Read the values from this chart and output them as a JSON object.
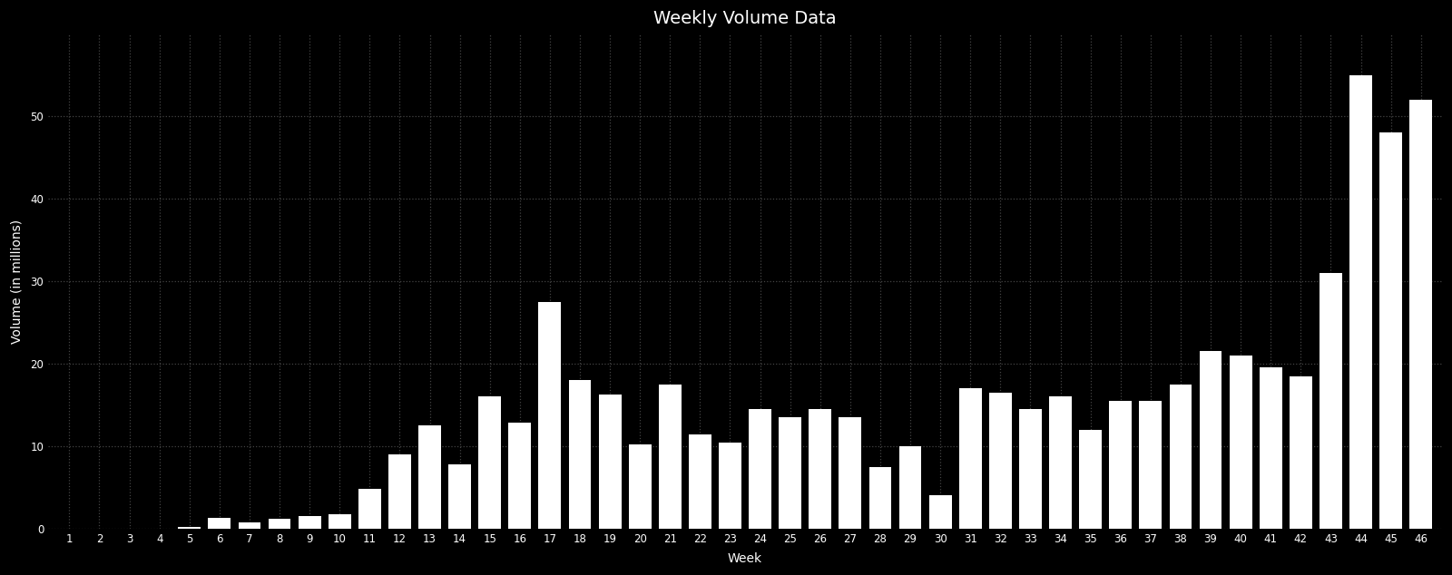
{
  "title": "Weekly Volume Data",
  "xlabel": "Week",
  "ylabel": "Volume (in millions)",
  "background_color": "#000000",
  "bar_color": "#ffffff",
  "grid_color": "#444444",
  "text_color": "#ffffff",
  "weeks": [
    1,
    2,
    3,
    4,
    5,
    6,
    7,
    8,
    9,
    10,
    11,
    12,
    13,
    14,
    15,
    16,
    17,
    18,
    19,
    20,
    21,
    22,
    23,
    24,
    25,
    26,
    27,
    28,
    29,
    30,
    31,
    32,
    33,
    34,
    35,
    36,
    37,
    38,
    39,
    40,
    41,
    42,
    43,
    44,
    45,
    46
  ],
  "values": [
    0.0,
    0.0,
    0.0,
    0.0,
    0.15,
    1.3,
    0.7,
    1.2,
    1.5,
    1.7,
    4.8,
    9.0,
    12.5,
    7.8,
    16.0,
    12.8,
    27.5,
    18.0,
    16.2,
    10.2,
    17.5,
    11.4,
    10.4,
    14.5,
    13.5,
    14.5,
    13.5,
    7.5,
    10.0,
    4.0,
    17.0,
    16.5,
    14.5,
    16.0,
    12.0,
    15.5,
    15.5,
    17.5,
    21.5,
    21.0,
    19.5,
    18.5,
    31.0,
    55.0,
    48.0,
    52.0
  ],
  "ylim": [
    0,
    60
  ],
  "yticks": [
    0,
    10,
    20,
    30,
    40,
    50
  ],
  "title_fontsize": 14,
  "label_fontsize": 10,
  "tick_fontsize": 8.5
}
